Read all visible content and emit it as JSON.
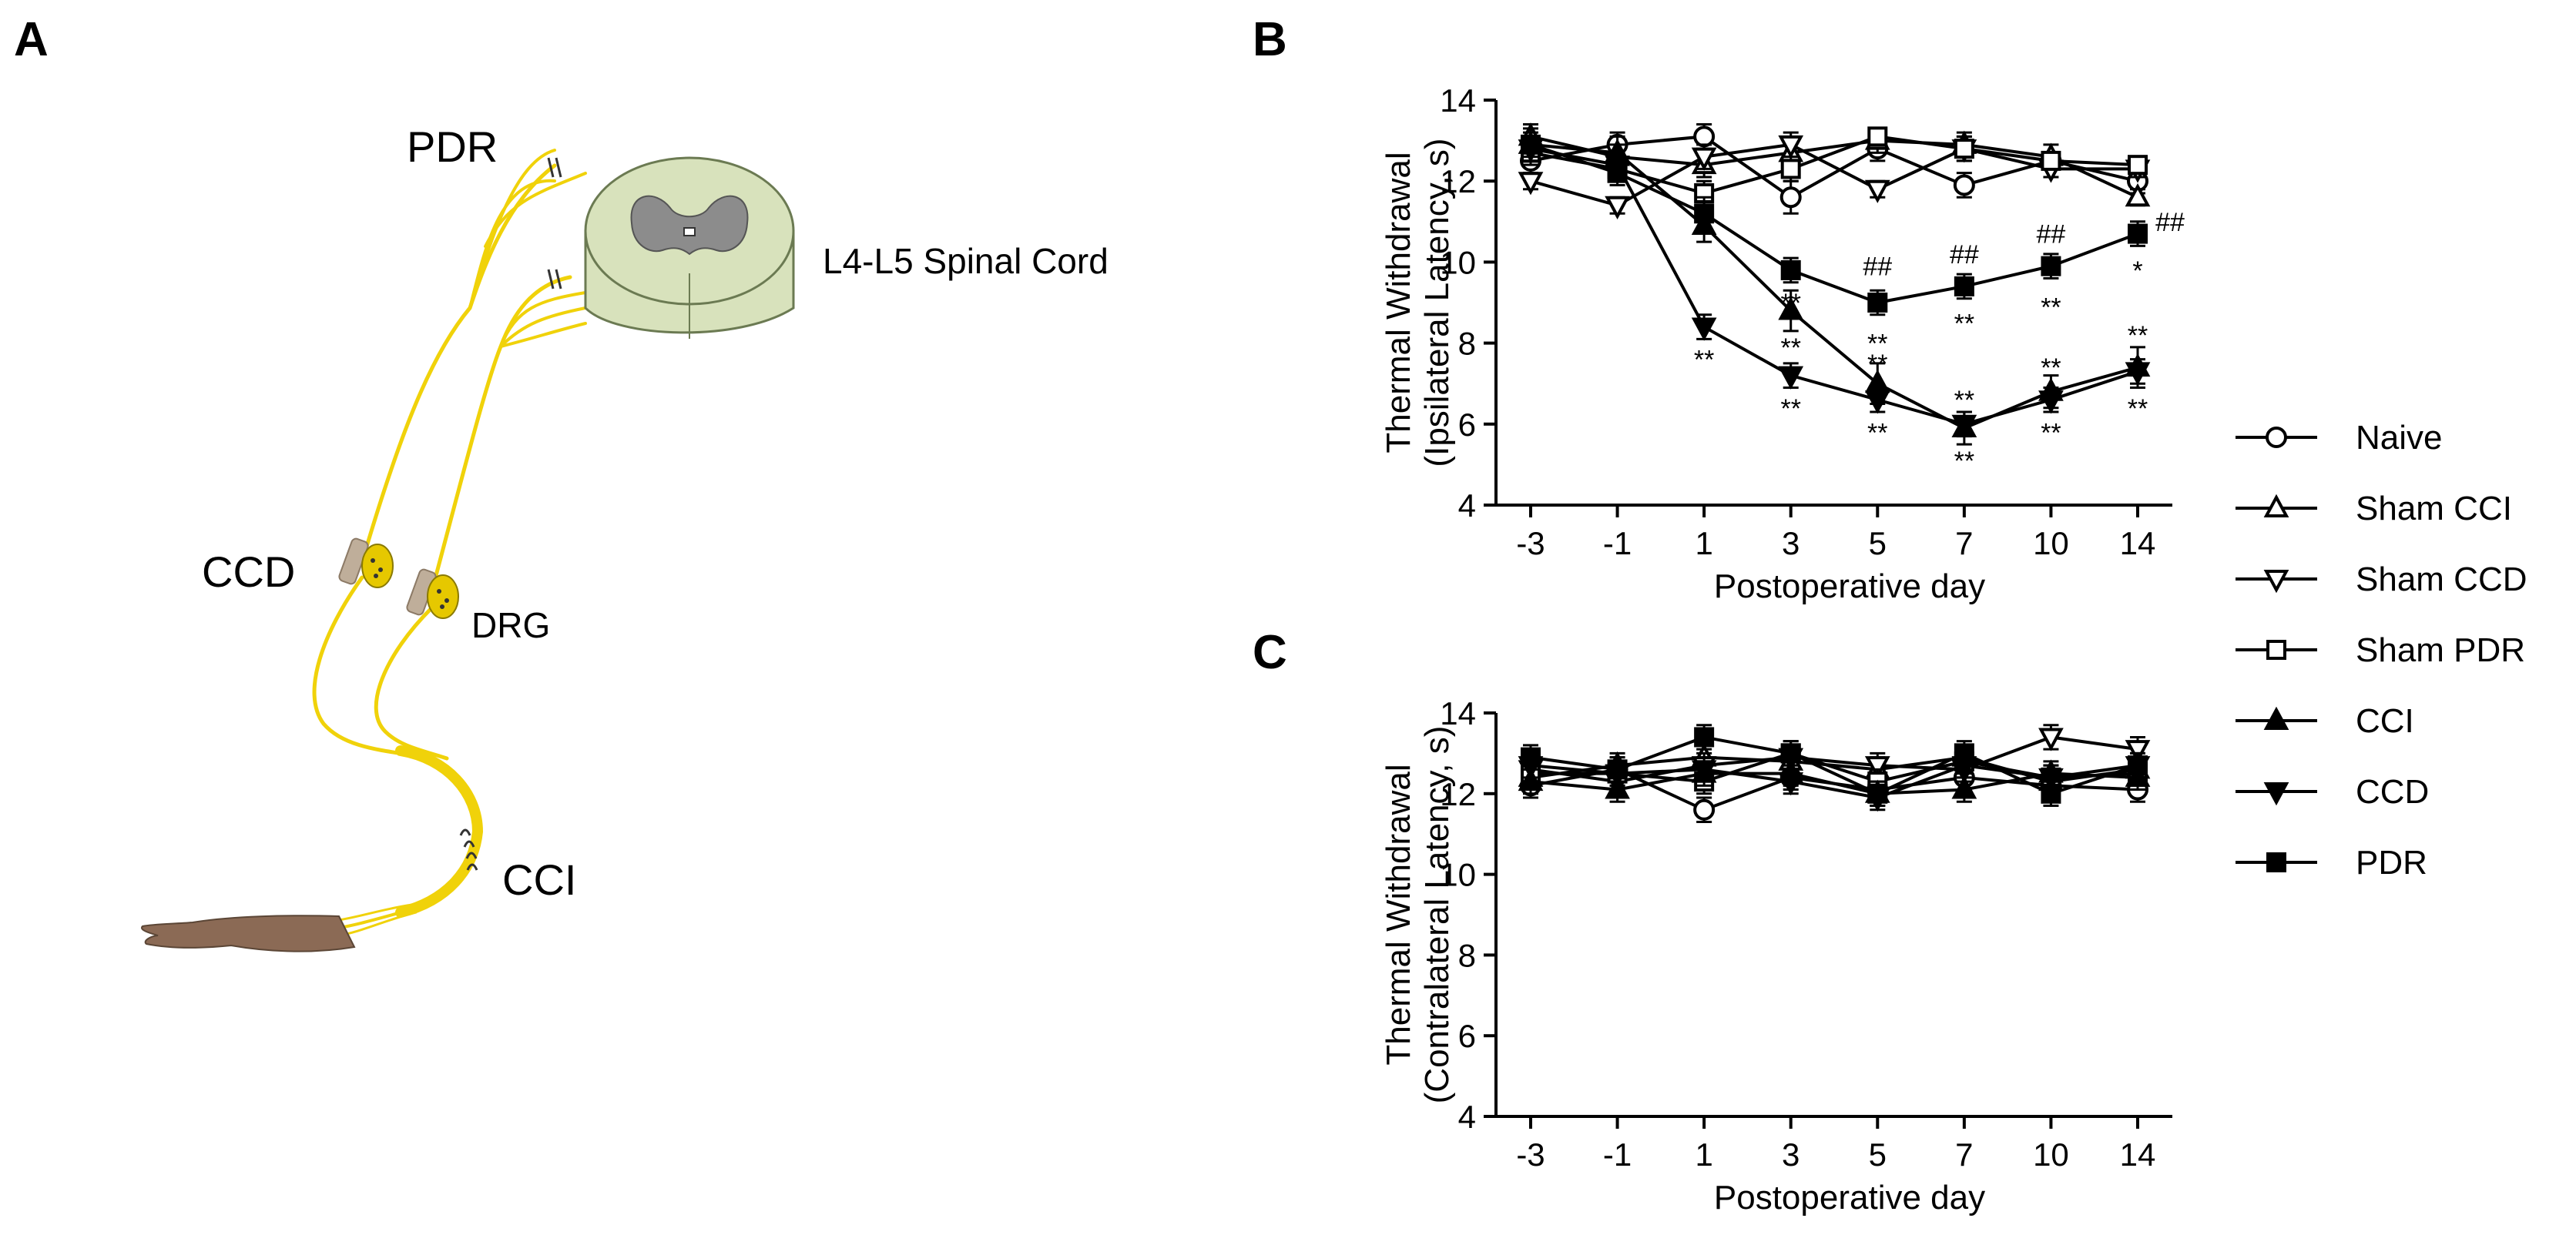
{
  "panel_labels": {
    "a": "A",
    "b": "B",
    "c": "C"
  },
  "schematic": {
    "pdr": "PDR",
    "spinal_cord": "L4-L5 Spinal Cord",
    "ccd": "CCD",
    "drg": "DRG",
    "cci": "CCI",
    "nerve_color": "#f0d20a",
    "ganglion_color": "#e6c800",
    "cord_outer": "#d8e2bc",
    "cord_grey": "#8c8c8c",
    "skin_color": "#8b6a55"
  },
  "legend": [
    {
      "name": "Naive",
      "marker": "circle-open"
    },
    {
      "name": "Sham CCI",
      "marker": "triangle-up-open"
    },
    {
      "name": "Sham CCD",
      "marker": "triangle-down-open"
    },
    {
      "name": "Sham PDR",
      "marker": "square-open"
    },
    {
      "name": "CCI",
      "marker": "triangle-up-filled"
    },
    {
      "name": "CCD",
      "marker": "triangle-down-filled"
    },
    {
      "name": "PDR",
      "marker": "square-filled"
    }
  ],
  "chart_data": [
    {
      "type": "line",
      "panel": "B",
      "xlabel": "Postoperative day",
      "ylabel_line1": "Thermal Withdrawal",
      "ylabel_line2": "(Ipsilateral Latency, s)",
      "categories": [
        "-3",
        "-1",
        "1",
        "3",
        "5",
        "7",
        "10",
        "14"
      ],
      "ylim": [
        4,
        14
      ],
      "yticks": [
        4,
        6,
        8,
        10,
        12,
        14
      ],
      "series": [
        {
          "name": "Naive",
          "marker": "circle-open",
          "values": [
            12.5,
            12.9,
            13.1,
            11.6,
            12.8,
            11.9,
            12.5,
            12.0
          ],
          "errors": [
            0.3,
            0.3,
            0.3,
            0.4,
            0.3,
            0.3,
            0.2,
            0.3
          ]
        },
        {
          "name": "Sham CCI",
          "marker": "triangle-up-open",
          "values": [
            13.1,
            12.6,
            12.4,
            12.7,
            13.0,
            12.9,
            12.6,
            11.6
          ],
          "errors": [
            0.3,
            0.3,
            0.3,
            0.3,
            0.3,
            0.3,
            0.3,
            0.2
          ]
        },
        {
          "name": "Sham CCD",
          "marker": "triangle-down-open",
          "values": [
            12.0,
            11.4,
            12.6,
            12.9,
            11.8,
            12.8,
            12.3,
            12.3
          ],
          "errors": [
            0.2,
            0.2,
            0.3,
            0.3,
            0.2,
            0.3,
            0.2,
            0.2
          ]
        },
        {
          "name": "Sham PDR",
          "marker": "square-open",
          "values": [
            12.7,
            12.3,
            11.7,
            12.3,
            13.1,
            12.8,
            12.5,
            12.4
          ],
          "errors": [
            0.3,
            0.3,
            0.3,
            0.3,
            0.2,
            0.3,
            0.2,
            0.2
          ]
        },
        {
          "name": "CCI",
          "marker": "triangle-up-filled",
          "values": [
            12.9,
            12.7,
            10.9,
            8.8,
            7.0,
            5.9,
            6.8,
            7.4
          ],
          "errors": [
            0.4,
            0.4,
            0.4,
            0.5,
            0.5,
            0.4,
            0.4,
            0.5
          ]
        },
        {
          "name": "CCD",
          "marker": "triangle-down-filled",
          "values": [
            12.8,
            12.4,
            8.4,
            7.2,
            6.6,
            6.0,
            6.6,
            7.3
          ],
          "errors": [
            0.3,
            0.3,
            0.3,
            0.3,
            0.3,
            0.3,
            0.3,
            0.3
          ]
        },
        {
          "name": "PDR",
          "marker": "square-filled",
          "values": [
            12.9,
            12.2,
            11.2,
            9.8,
            9.0,
            9.4,
            9.9,
            10.7
          ],
          "errors": [
            0.3,
            0.3,
            0.4,
            0.3,
            0.3,
            0.3,
            0.3,
            0.3
          ]
        }
      ],
      "annotations": [
        {
          "text": "**",
          "x": "1",
          "y": 7.6
        },
        {
          "text": "**",
          "x": "3",
          "y": 7.9
        },
        {
          "text": "**",
          "x": "3",
          "y": 6.4
        },
        {
          "text": "**",
          "x": "3",
          "y": 9.0
        },
        {
          "text": "**",
          "x": "5",
          "y": 8.0
        },
        {
          "text": "**",
          "x": "5",
          "y": 7.5
        },
        {
          "text": "**",
          "x": "5",
          "y": 5.8
        },
        {
          "text": "##",
          "x": "5",
          "y": 9.9
        },
        {
          "text": "##",
          "x": "7",
          "y": 10.2
        },
        {
          "text": "**",
          "x": "7",
          "y": 8.5
        },
        {
          "text": "**",
          "x": "7",
          "y": 6.6
        },
        {
          "text": "**",
          "x": "7",
          "y": 5.1
        },
        {
          "text": "##",
          "x": "10",
          "y": 10.7
        },
        {
          "text": "**",
          "x": "10",
          "y": 8.9
        },
        {
          "text": "**",
          "x": "10",
          "y": 7.4
        },
        {
          "text": "**",
          "x": "10",
          "y": 5.8
        },
        {
          "text": "##",
          "x": "14",
          "y": 11.0,
          "dx": 1
        },
        {
          "text": "*",
          "x": "14",
          "y": 9.8
        },
        {
          "text": "**",
          "x": "14",
          "y": 8.2
        },
        {
          "text": "**",
          "x": "14",
          "y": 6.4
        }
      ]
    },
    {
      "type": "line",
      "panel": "C",
      "xlabel": "Postoperative day",
      "ylabel_line1": "Thermal Withdrawal",
      "ylabel_line2": "(Contralateral Latency, s)",
      "categories": [
        "-3",
        "-1",
        "1",
        "3",
        "5",
        "7",
        "10",
        "14"
      ],
      "ylim": [
        4,
        14
      ],
      "yticks": [
        4,
        6,
        8,
        10,
        12,
        14
      ],
      "series": [
        {
          "name": "Naive",
          "marker": "circle-open",
          "values": [
            12.2,
            12.6,
            11.6,
            12.4,
            12.1,
            12.4,
            12.2,
            12.1
          ],
          "errors": [
            0.3,
            0.3,
            0.3,
            0.3,
            0.3,
            0.3,
            0.3,
            0.3
          ]
        },
        {
          "name": "Sham CCI",
          "marker": "triangle-up-open",
          "values": [
            12.4,
            12.7,
            12.9,
            12.8,
            12.6,
            12.9,
            12.3,
            12.6
          ],
          "errors": [
            0.3,
            0.3,
            0.3,
            0.3,
            0.3,
            0.3,
            0.3,
            0.3
          ]
        },
        {
          "name": "Sham CCD",
          "marker": "triangle-down-open",
          "values": [
            12.6,
            12.3,
            12.7,
            12.9,
            12.7,
            12.6,
            13.4,
            13.1
          ],
          "errors": [
            0.3,
            0.3,
            0.3,
            0.3,
            0.3,
            0.3,
            0.3,
            0.3
          ]
        },
        {
          "name": "Sham PDR",
          "marker": "square-open",
          "values": [
            12.5,
            12.5,
            12.3,
            13.0,
            12.3,
            12.8,
            12.4,
            12.5
          ],
          "errors": [
            0.3,
            0.3,
            0.3,
            0.3,
            0.3,
            0.3,
            0.3,
            0.3
          ]
        },
        {
          "name": "CCI",
          "marker": "triangle-up-filled",
          "values": [
            12.3,
            12.1,
            12.5,
            12.5,
            12.0,
            12.1,
            12.5,
            12.4
          ],
          "errors": [
            0.3,
            0.3,
            0.3,
            0.3,
            0.3,
            0.3,
            0.3,
            0.3
          ]
        },
        {
          "name": "CCD",
          "marker": "triangle-down-filled",
          "values": [
            12.7,
            12.5,
            12.6,
            12.3,
            11.9,
            12.7,
            12.4,
            12.7
          ],
          "errors": [
            0.3,
            0.3,
            0.3,
            0.3,
            0.3,
            0.3,
            0.3,
            0.3
          ]
        },
        {
          "name": "PDR",
          "marker": "square-filled",
          "values": [
            12.9,
            12.6,
            13.4,
            13.0,
            12.0,
            13.0,
            12.0,
            12.7
          ],
          "errors": [
            0.3,
            0.3,
            0.3,
            0.3,
            0.3,
            0.3,
            0.3,
            0.3
          ]
        }
      ],
      "annotations": []
    }
  ]
}
